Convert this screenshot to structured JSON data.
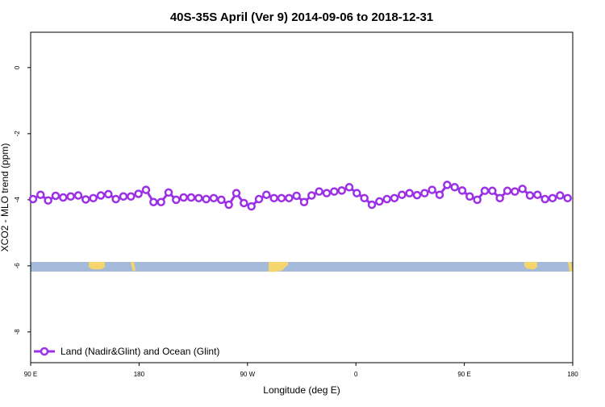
{
  "chart_data": {
    "type": "line",
    "title": "40S-35S April (Ver 9)   2014-09-06 to 2018-12-31",
    "x_label": "Longitude (deg E)",
    "y_label": "XCO2 - MLO trend (ppm)",
    "xlim": [
      90,
      540
    ],
    "xticks": [
      {
        "value": 90,
        "label": "90 E"
      },
      180,
      {
        "value": 270,
        "label": "90 W"
      },
      {
        "value": 360,
        "label": "0"
      },
      {
        "value": 450,
        "label": "90 E"
      },
      180.0001
    ],
    "ylim": [
      -8.93,
      1.07
    ],
    "yticks": [
      0,
      -2,
      -4,
      -6,
      -8
    ],
    "legend": "bottom-left",
    "x": [
      92,
      98.25,
      104.5,
      110.75,
      117,
      123.25,
      129.5,
      135.75,
      142,
      148.25,
      154.5,
      160.75,
      167,
      173.25,
      179.5,
      185.75,
      192,
      198.25,
      204.5,
      210.75,
      217,
      223.25,
      229.5,
      235.75,
      242,
      248.25,
      254.5,
      260.75,
      267,
      273.25,
      279.5,
      285.75,
      292,
      298.25,
      304.5,
      310.75,
      317,
      323.25,
      329.5,
      335.75,
      342,
      348.25,
      354.5,
      360.75,
      367,
      373.25,
      379.5,
      385.75,
      392,
      398.25,
      404.5,
      410.75,
      417,
      423.25,
      429.5,
      435.75,
      442,
      448.25,
      454.5,
      460.75,
      467,
      473.25,
      479.5,
      485.75,
      492,
      498.25,
      504.5,
      510.75,
      517,
      523.25,
      529.5,
      535.75
    ],
    "series": [
      {
        "name": "Land (Nadir&Glint) and Ocean (Glint)",
        "color": "#9b30e6",
        "values": [
          -3.98,
          -3.85,
          -4.02,
          -3.88,
          -3.93,
          -3.9,
          -3.87,
          -3.99,
          -3.95,
          -3.87,
          -3.83,
          -3.98,
          -3.9,
          -3.9,
          -3.82,
          -3.7,
          -4.07,
          -4.07,
          -3.78,
          -4.0,
          -3.93,
          -3.93,
          -3.95,
          -3.98,
          -3.95,
          -4.0,
          -4.15,
          -3.8,
          -4.1,
          -4.2,
          -3.98,
          -3.85,
          -3.95,
          -3.95,
          -3.95,
          -3.88,
          -4.07,
          -3.87,
          -3.75,
          -3.8,
          -3.75,
          -3.72,
          -3.62,
          -3.8,
          -3.95,
          -4.15,
          -4.05,
          -3.98,
          -3.95,
          -3.85,
          -3.8,
          -3.86,
          -3.8,
          -3.7,
          -3.85,
          -3.55,
          -3.62,
          -3.72,
          -3.9,
          -4.0,
          -3.73,
          -3.73,
          -3.95,
          -3.73,
          -3.75,
          -3.67,
          -3.87,
          -3.85,
          -3.98,
          -3.95,
          -3.87,
          -3.95
        ]
      }
    ]
  }
}
